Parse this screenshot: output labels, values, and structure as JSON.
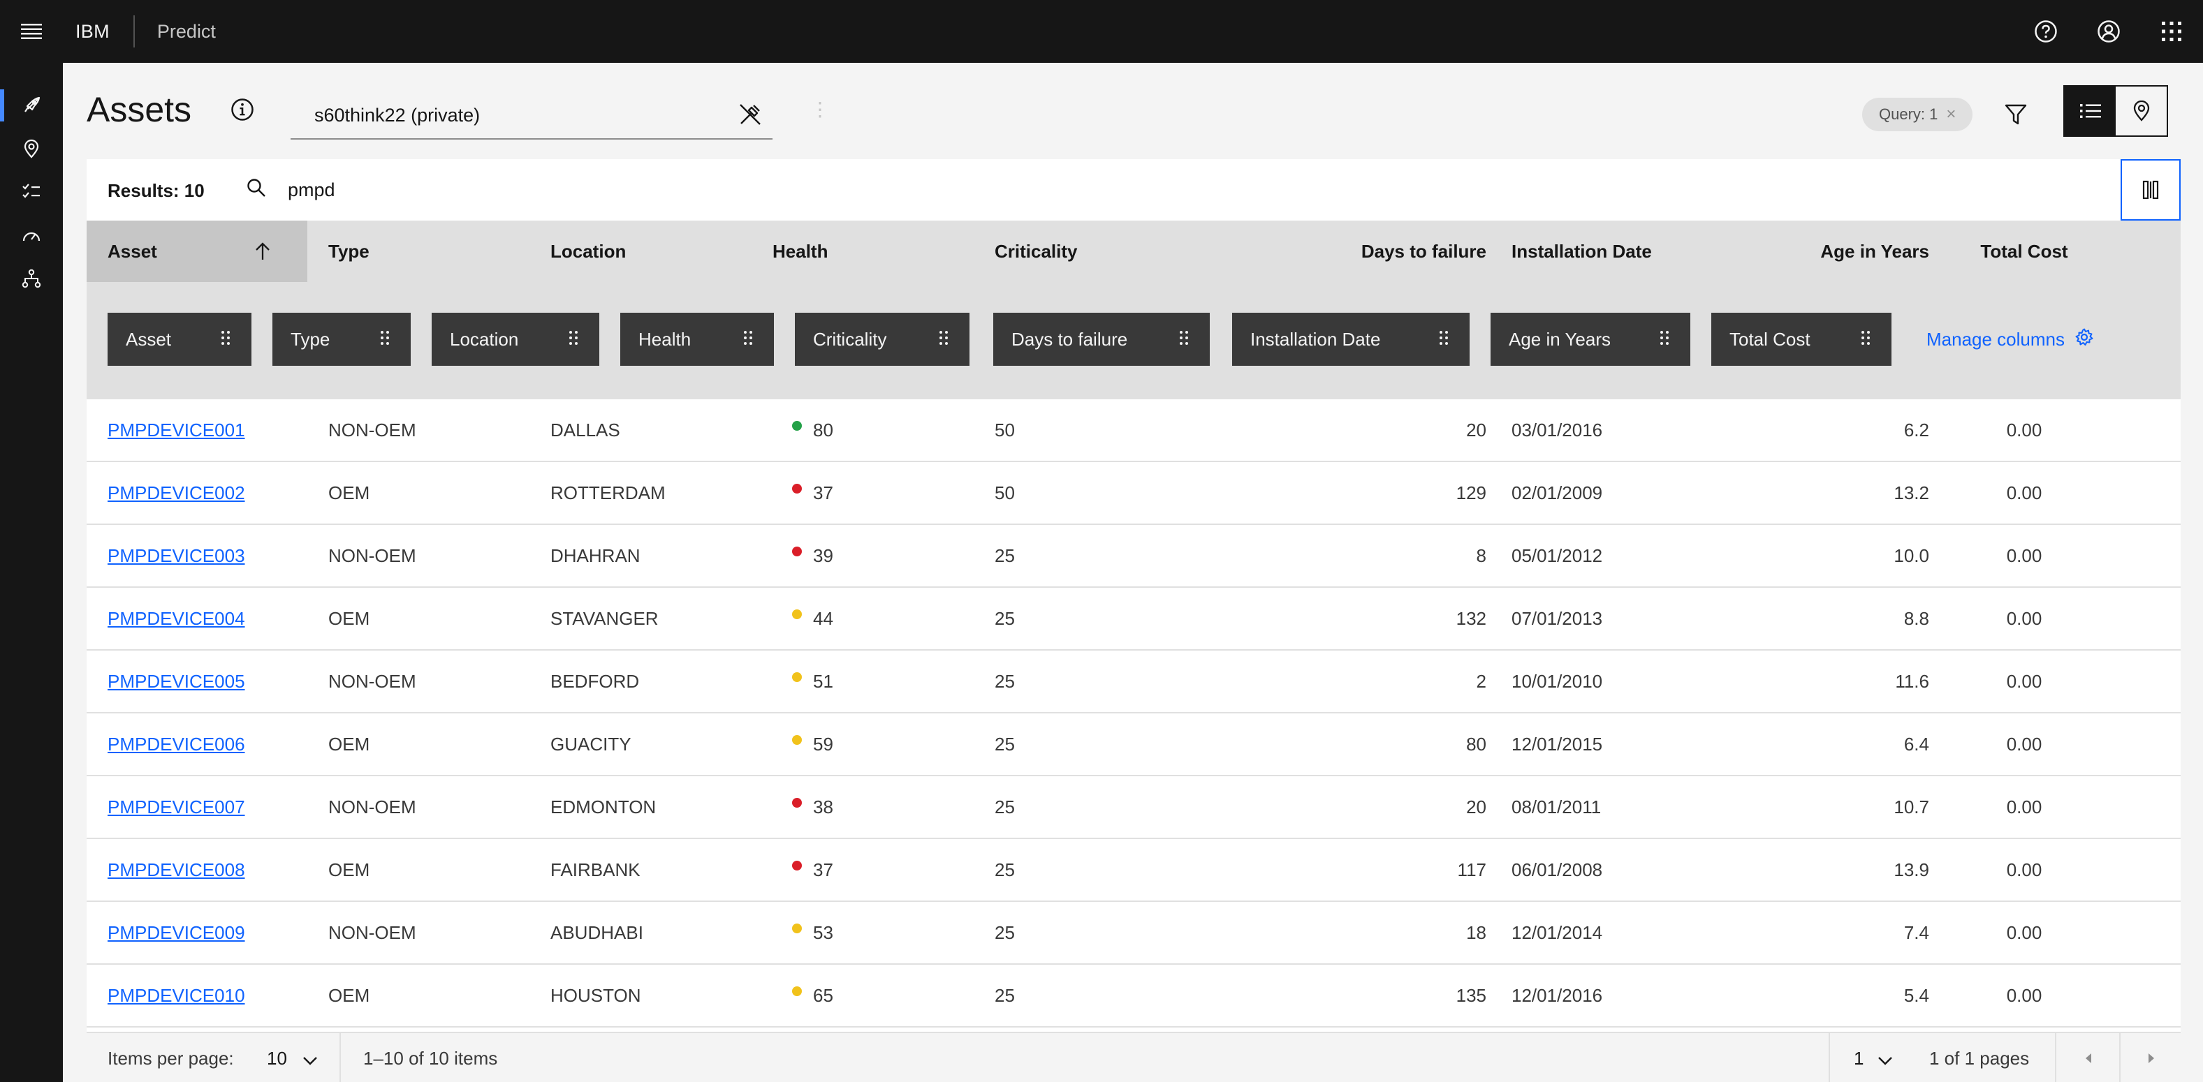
{
  "header": {
    "brand": "IBM",
    "product": "Predict",
    "icons": [
      "menu-icon",
      "help-icon",
      "user-icon",
      "app-switcher-icon"
    ]
  },
  "siderail": {
    "icons": [
      "rocket-icon",
      "location-icon",
      "task-list-icon",
      "gauge-icon",
      "hierarchy-icon"
    ]
  },
  "page": {
    "title": "Assets",
    "query_value": "s60think22 (private)",
    "query_tag": "Query: 1",
    "query_tag_close": "×",
    "kebab": "⋮"
  },
  "table": {
    "results_label": "Results: 10",
    "search_value": "pmpd",
    "columns": [
      "Asset",
      "Type",
      "Location",
      "Health",
      "Criticality",
      "Days to failure",
      "Installation Date",
      "Age in Years",
      "Total Cost"
    ],
    "chips": [
      "Asset",
      "Type",
      "Location",
      "Health",
      "Criticality",
      "Days to failure",
      "Installation Date",
      "Age in Years",
      "Total Cost"
    ],
    "manage_columns": "Manage columns",
    "sort": {
      "column": "Asset",
      "direction": "ascending"
    },
    "rows": [
      {
        "asset": "PMPDEVICE001",
        "type": "NON-OEM",
        "location": "DALLAS",
        "health": "80",
        "health_status": "green",
        "criticality": "50",
        "days": "20",
        "install": "03/01/2016",
        "age": "6.2",
        "cost": "0.00"
      },
      {
        "asset": "PMPDEVICE002",
        "type": "OEM",
        "location": "ROTTERDAM",
        "health": "37",
        "health_status": "red",
        "criticality": "50",
        "days": "129",
        "install": "02/01/2009",
        "age": "13.2",
        "cost": "0.00"
      },
      {
        "asset": "PMPDEVICE003",
        "type": "NON-OEM",
        "location": "DHAHRAN",
        "health": "39",
        "health_status": "red",
        "criticality": "25",
        "days": "8",
        "install": "05/01/2012",
        "age": "10.0",
        "cost": "0.00"
      },
      {
        "asset": "PMPDEVICE004",
        "type": "OEM",
        "location": "STAVANGER",
        "health": "44",
        "health_status": "yellow",
        "criticality": "25",
        "days": "132",
        "install": "07/01/2013",
        "age": "8.8",
        "cost": "0.00"
      },
      {
        "asset": "PMPDEVICE005",
        "type": "NON-OEM",
        "location": "BEDFORD",
        "health": "51",
        "health_status": "yellow",
        "criticality": "25",
        "days": "2",
        "install": "10/01/2010",
        "age": "11.6",
        "cost": "0.00"
      },
      {
        "asset": "PMPDEVICE006",
        "type": "OEM",
        "location": "GUACITY",
        "health": "59",
        "health_status": "yellow",
        "criticality": "25",
        "days": "80",
        "install": "12/01/2015",
        "age": "6.4",
        "cost": "0.00"
      },
      {
        "asset": "PMPDEVICE007",
        "type": "NON-OEM",
        "location": "EDMONTON",
        "health": "38",
        "health_status": "red",
        "criticality": "25",
        "days": "20",
        "install": "08/01/2011",
        "age": "10.7",
        "cost": "0.00"
      },
      {
        "asset": "PMPDEVICE008",
        "type": "OEM",
        "location": "FAIRBANK",
        "health": "37",
        "health_status": "red",
        "criticality": "25",
        "days": "117",
        "install": "06/01/2008",
        "age": "13.9",
        "cost": "0.00"
      },
      {
        "asset": "PMPDEVICE009",
        "type": "NON-OEM",
        "location": "ABUDHABI",
        "health": "53",
        "health_status": "yellow",
        "criticality": "25",
        "days": "18",
        "install": "12/01/2014",
        "age": "7.4",
        "cost": "0.00"
      },
      {
        "asset": "PMPDEVICE010",
        "type": "OEM",
        "location": "HOUSTON",
        "health": "65",
        "health_status": "yellow",
        "criticality": "25",
        "days": "135",
        "install": "12/01/2016",
        "age": "5.4",
        "cost": "0.00"
      }
    ]
  },
  "pagination": {
    "items_per_page_label": "Items per page:",
    "items_per_page_value": "10",
    "range_text": "1–10 of 10 items",
    "page_value": "1",
    "pages_text": "1 of 1 pages"
  },
  "colors": {
    "green": "#24a148",
    "red": "#da1e28",
    "yellow": "#f1c21b",
    "link": "#0f62fe",
    "shell": "#161616"
  }
}
